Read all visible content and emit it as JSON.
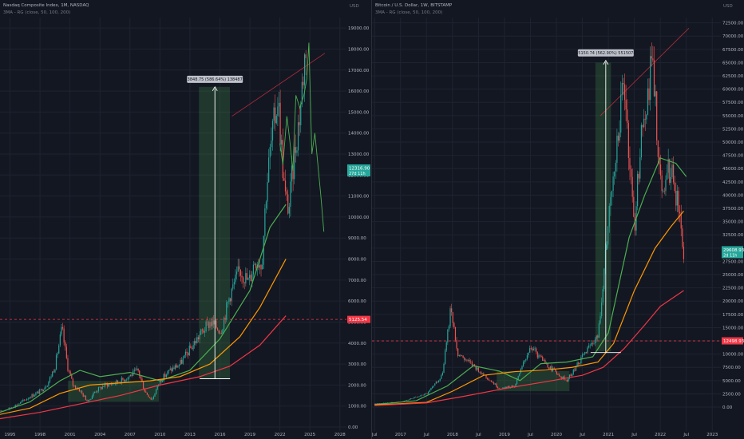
{
  "chart_data": [
    {
      "type": "line",
      "title": "Nasdaq Composite Index, 1M, NASDAQ",
      "subtitle": "3MA - RG (close, 50, 100, 200)",
      "currency": "USD",
      "x_ticks": [
        "1995",
        "1998",
        "2001",
        "2004",
        "2007",
        "2010",
        "2013",
        "2016",
        "2019",
        "2022",
        "2025",
        "2028"
      ],
      "x_tick_years": [
        1995,
        1998,
        2001,
        2004,
        2007,
        2010,
        2013,
        2016,
        2019,
        2022,
        2025,
        2028
      ],
      "xlim": [
        1994,
        2028.5
      ],
      "ylim": [
        0,
        19500
      ],
      "y_ticks": [
        "0.00",
        "1000.00",
        "2000.00",
        "3000.00",
        "4000.00",
        "5000.00",
        "6000.00",
        "7000.00",
        "8000.00",
        "9000.00",
        "10000.00",
        "11000.00",
        "12000.00",
        "13000.00",
        "14000.00",
        "15000.00",
        "16000.00",
        "17000.00",
        "18000.00",
        "19000.00"
      ],
      "y_tick_values": [
        0,
        1000,
        2000,
        3000,
        4000,
        5000,
        6000,
        7000,
        8000,
        9000,
        10000,
        11000,
        12000,
        13000,
        14000,
        15000,
        16000,
        17000,
        18000,
        19000
      ],
      "price": {
        "name": "Nasdaq Composite",
        "color": "#26a69a",
        "x": [
          1994.0,
          1995.0,
          1996.0,
          1997.0,
          1998.0,
          1998.8,
          1999.5,
          2000.2,
          2000.8,
          2001.3,
          2001.9,
          2002.8,
          2003.5,
          2004.5,
          2005.5,
          2006.5,
          2007.8,
          2008.5,
          2009.2,
          2010.0,
          2011.0,
          2012.0,
          2013.0,
          2014.0,
          2015.0,
          2016.1,
          2017.0,
          2018.0,
          2018.9,
          2019.5,
          2020.2,
          2020.6,
          2021.0,
          2021.8,
          2022.5,
          2022.9,
          2023.5,
          2024.0,
          2024.6
        ],
        "y": [
          740,
          900,
          1150,
          1450,
          1700,
          2100,
          2900,
          4700,
          2800,
          2000,
          1800,
          1200,
          1700,
          2000,
          2100,
          2300,
          2700,
          1700,
          1300,
          2200,
          2700,
          3000,
          3700,
          4400,
          5000,
          4600,
          6300,
          7500,
          6900,
          8000,
          7800,
          11100,
          13000,
          15800,
          11000,
          10400,
          13200,
          15000,
          18300
        ]
      },
      "overlay": {
        "name": "Nasdaq Composite (2022-2024 overlay)",
        "color": "#4caf50",
        "x": [
          2022.0,
          2022.3,
          2022.7,
          2023.0,
          2023.3,
          2023.6,
          2024.0,
          2024.4,
          2024.7,
          2024.9,
          2025.2,
          2025.5,
          2025.8,
          2026.1,
          2026.4
        ],
        "y": [
          13500,
          12500,
          14800,
          13600,
          12200,
          15800,
          15200,
          15800,
          16600,
          18300,
          13000,
          14000,
          12500,
          11000,
          9300
        ]
      },
      "moving_averages": [
        {
          "name": "MA 50",
          "color": "#4caf50",
          "x": [
            1994,
            1997,
            2000,
            2002,
            2004,
            2007,
            2010,
            2013,
            2016,
            2019,
            2021,
            2022.6
          ],
          "y": [
            700,
            1200,
            2200,
            2700,
            2400,
            2600,
            2200,
            2700,
            4200,
            6500,
            9500,
            10600
          ]
        },
        {
          "name": "MA 100",
          "color": "#ff9800",
          "x": [
            1994,
            1997,
            2000,
            2003,
            2006,
            2009,
            2012,
            2015,
            2018,
            2020,
            2022.6
          ],
          "y": [
            600,
            900,
            1600,
            2000,
            2100,
            2200,
            2400,
            3000,
            4300,
            5700,
            8000
          ]
        },
        {
          "name": "MA 200",
          "color": "#f23645",
          "x": [
            1994,
            1998,
            2002,
            2006,
            2010,
            2014,
            2017,
            2020,
            2022.6
          ],
          "y": [
            400,
            700,
            1100,
            1500,
            2000,
            2400,
            2900,
            3900,
            5300
          ]
        }
      ],
      "boxes": [
        {
          "x": [
            2000.8,
            2009.9
          ],
          "y": [
            1200,
            2200
          ],
          "color": "#4caf50"
        },
        {
          "x": [
            2013.9,
            2017.0
          ],
          "y": [
            2300,
            16200
          ],
          "color": "#4caf50"
        }
      ],
      "measure": {
        "label": "13848.75 (586.64%) 1384875",
        "x": 2015.5,
        "y_from": 2300,
        "y_to": 16200
      },
      "dashed_level": {
        "value": 5125.54,
        "label": "5125.54",
        "color": "#f23645"
      },
      "resistance": {
        "x": [
          2017.2,
          2026.5
        ],
        "y": [
          14800,
          17800
        ],
        "color": "#f23645"
      },
      "price_label": {
        "value": 12316.9,
        "label": "12316.90",
        "sublabel": "27d 11h",
        "color": "#26a69a"
      }
    },
    {
      "type": "line",
      "title": "Bitcoin / U.S. Dollar, 1W, BITSTAMP",
      "subtitle": "3MA - RG (close, 50, 100, 200)",
      "currency": "USD",
      "x_ticks": [
        "Jul",
        "2017",
        "Jul",
        "2018",
        "Jul",
        "2019",
        "Jul",
        "2020",
        "Jul",
        "2021",
        "Jul",
        "2022",
        "Jul",
        "2023"
      ],
      "x_tick_years": [
        2016.5,
        2017,
        2017.5,
        2018,
        2018.5,
        2019,
        2019.5,
        2020,
        2020.5,
        2021,
        2021.5,
        2022,
        2022.5,
        2023
      ],
      "xlim": [
        2016.45,
        2023.15
      ],
      "ylim": [
        -1500,
        73500
      ],
      "y_ticks": [
        "0.00",
        "2500.00",
        "5000.00",
        "7500.00",
        "10000.00",
        "12500.00",
        "15000.00",
        "17500.00",
        "20000.00",
        "22500.00",
        "25000.00",
        "27500.00",
        "30000.00",
        "32500.00",
        "35000.00",
        "37500.00",
        "40000.00",
        "42500.00",
        "45000.00",
        "47500.00",
        "50000.00",
        "52500.00",
        "55000.00",
        "57500.00",
        "60000.00",
        "62500.00",
        "65000.00",
        "67500.00",
        "70000.00",
        "72500.00"
      ],
      "y_tick_values": [
        0,
        2500,
        5000,
        7500,
        10000,
        12500,
        15000,
        17500,
        20000,
        22500,
        25000,
        27500,
        30000,
        32500,
        35000,
        37500,
        40000,
        42500,
        45000,
        47500,
        50000,
        52500,
        55000,
        57500,
        60000,
        62500,
        65000,
        67500,
        70000,
        72500
      ],
      "price": {
        "name": "BTC/USD",
        "color": "#26a69a",
        "x": [
          2016.5,
          2017.0,
          2017.5,
          2017.8,
          2017.97,
          2018.1,
          2018.5,
          2018.9,
          2019.2,
          2019.5,
          2019.8,
          2020.2,
          2020.5,
          2020.8,
          2020.95,
          2021.1,
          2021.3,
          2021.5,
          2021.6,
          2021.85,
          2022.0,
          2022.2,
          2022.35,
          2022.45
        ],
        "y": [
          650,
          1000,
          2500,
          6000,
          19000,
          10000,
          7000,
          3500,
          4000,
          11500,
          8000,
          5000,
          9500,
          13500,
          29000,
          45000,
          62000,
          33000,
          48000,
          66000,
          42000,
          45000,
          38000,
          29600
        ]
      },
      "moving_averages": [
        {
          "name": "MA 50",
          "color": "#4caf50",
          "x": [
            2016.5,
            2017.3,
            2017.9,
            2018.4,
            2018.9,
            2019.3,
            2019.7,
            2020.2,
            2020.7,
            2021.0,
            2021.4,
            2021.7,
            2022.0,
            2022.3,
            2022.5
          ],
          "y": [
            500,
            1200,
            4000,
            7800,
            6800,
            5000,
            8200,
            8500,
            9500,
            14000,
            32000,
            40000,
            47000,
            46000,
            43500
          ]
        },
        {
          "name": "MA 100",
          "color": "#ff9800",
          "x": [
            2016.5,
            2017.5,
            2018.0,
            2018.6,
            2019.2,
            2019.8,
            2020.3,
            2020.8,
            2021.1,
            2021.5,
            2021.9,
            2022.2,
            2022.45
          ],
          "y": [
            400,
            900,
            3000,
            6000,
            6700,
            7000,
            7500,
            8500,
            12000,
            22000,
            30000,
            34000,
            37000
          ]
        },
        {
          "name": "MA 200",
          "color": "#f23645",
          "x": [
            2016.5,
            2017.5,
            2018.2,
            2019.0,
            2019.8,
            2020.5,
            2020.9,
            2021.3,
            2021.7,
            2022.0,
            2022.45
          ],
          "y": [
            300,
            800,
            2000,
            3500,
            4800,
            6000,
            7500,
            11000,
            15500,
            19000,
            22000
          ]
        }
      ],
      "boxes": [
        {
          "x": [
            2018.85,
            2020.25
          ],
          "y": [
            3000,
            6800
          ],
          "color": "#4caf50"
        },
        {
          "x": [
            2020.75,
            2021.05
          ],
          "y": [
            10500,
            65000
          ],
          "color": "#4caf50"
        }
      ],
      "measure": {
        "label": "55150.74 (562.90%) 5515074",
        "x": 2020.95,
        "y_from": 10300,
        "y_to": 65400
      },
      "dashed_level": {
        "value": 12498.93,
        "label": "12498.93",
        "color": "#f23645"
      },
      "resistance": {
        "x": [
          2020.85,
          2022.55
        ],
        "y": [
          55000,
          71500
        ],
        "color": "#f23645"
      },
      "price_label": {
        "value": 29608.93,
        "label": "29608.93",
        "sublabel": "2d 11h",
        "color": "#26a69a"
      }
    }
  ]
}
